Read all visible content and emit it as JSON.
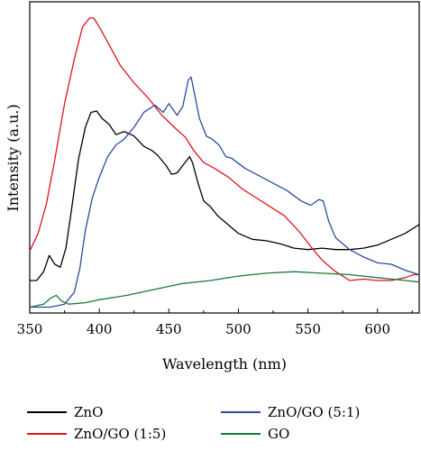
{
  "chart_data": {
    "type": "line",
    "xlabel": "Wavelength (nm)",
    "ylabel": "Intensity (a.u.)",
    "xlim": [
      350,
      630
    ],
    "ylim": [
      0,
      100
    ],
    "xticks": [
      350,
      400,
      450,
      500,
      550,
      600
    ],
    "grid": false,
    "legend_placement": "bottom",
    "series": [
      {
        "name": "ZnO",
        "color": "#000000",
        "points": [
          [
            350,
            11
          ],
          [
            355,
            11
          ],
          [
            360,
            14
          ],
          [
            364,
            19.5
          ],
          [
            368,
            16.5
          ],
          [
            372,
            15.5
          ],
          [
            376,
            22
          ],
          [
            380,
            35
          ],
          [
            385,
            52
          ],
          [
            390,
            63
          ],
          [
            394,
            68
          ],
          [
            398,
            68.5
          ],
          [
            402,
            66
          ],
          [
            407,
            64
          ],
          [
            412,
            60.5
          ],
          [
            418,
            61.5
          ],
          [
            425,
            60
          ],
          [
            432,
            56.5
          ],
          [
            438,
            55
          ],
          [
            442,
            53.5
          ],
          [
            448,
            50
          ],
          [
            452,
            47
          ],
          [
            456,
            47.5
          ],
          [
            460,
            50
          ],
          [
            465,
            53
          ],
          [
            467,
            51
          ],
          [
            471,
            44
          ],
          [
            475,
            38
          ],
          [
            480,
            36
          ],
          [
            485,
            33
          ],
          [
            490,
            31
          ],
          [
            495,
            29
          ],
          [
            500,
            27
          ],
          [
            510,
            25
          ],
          [
            520,
            24.5
          ],
          [
            530,
            23.5
          ],
          [
            540,
            22
          ],
          [
            550,
            21.5
          ],
          [
            560,
            22
          ],
          [
            570,
            21.5
          ],
          [
            580,
            21.5
          ],
          [
            590,
            22
          ],
          [
            600,
            23
          ],
          [
            610,
            25
          ],
          [
            620,
            27
          ],
          [
            630,
            30
          ]
        ]
      },
      {
        "name": "ZnO/GO (1:5)",
        "color": "#e0141e",
        "points": [
          [
            350,
            21
          ],
          [
            356,
            27
          ],
          [
            362,
            37
          ],
          [
            368,
            52
          ],
          [
            375,
            71
          ],
          [
            382,
            86
          ],
          [
            388,
            97
          ],
          [
            393,
            100
          ],
          [
            396,
            100
          ],
          [
            400,
            97
          ],
          [
            407,
            91
          ],
          [
            415,
            84
          ],
          [
            425,
            78
          ],
          [
            435,
            73
          ],
          [
            445,
            67
          ],
          [
            455,
            62.5
          ],
          [
            462,
            59.5
          ],
          [
            468,
            55
          ],
          [
            475,
            51
          ],
          [
            483,
            49
          ],
          [
            493,
            46
          ],
          [
            503,
            42
          ],
          [
            513,
            39
          ],
          [
            523,
            36
          ],
          [
            533,
            33
          ],
          [
            543,
            28
          ],
          [
            553,
            22
          ],
          [
            560,
            18
          ],
          [
            570,
            14
          ],
          [
            580,
            11
          ],
          [
            590,
            11.5
          ],
          [
            600,
            11
          ],
          [
            610,
            11
          ],
          [
            620,
            12
          ],
          [
            626,
            13
          ],
          [
            630,
            13
          ]
        ]
      },
      {
        "name": "ZnO/GO (5:1)",
        "color": "#2a4ba0",
        "points": [
          [
            350,
            2
          ],
          [
            365,
            2
          ],
          [
            375,
            3
          ],
          [
            382,
            7
          ],
          [
            386,
            15
          ],
          [
            390,
            28
          ],
          [
            395,
            39
          ],
          [
            400,
            46
          ],
          [
            406,
            53
          ],
          [
            412,
            57
          ],
          [
            418,
            59
          ],
          [
            425,
            63
          ],
          [
            432,
            68
          ],
          [
            440,
            70.5
          ],
          [
            446,
            68
          ],
          [
            450,
            71
          ],
          [
            456,
            67
          ],
          [
            460,
            70
          ],
          [
            464,
            79
          ],
          [
            466,
            80
          ],
          [
            469,
            73
          ],
          [
            472,
            66
          ],
          [
            477,
            60
          ],
          [
            481,
            59
          ],
          [
            486,
            57
          ],
          [
            491,
            53
          ],
          [
            495,
            52.5
          ],
          [
            505,
            49
          ],
          [
            515,
            46.5
          ],
          [
            525,
            44
          ],
          [
            535,
            41.5
          ],
          [
            545,
            38
          ],
          [
            552,
            36.5
          ],
          [
            558,
            38.5
          ],
          [
            561,
            38
          ],
          [
            565,
            31
          ],
          [
            570,
            25.5
          ],
          [
            580,
            21.5
          ],
          [
            590,
            19
          ],
          [
            600,
            17
          ],
          [
            610,
            16.5
          ],
          [
            620,
            14.5
          ],
          [
            630,
            13
          ]
        ]
      },
      {
        "name": "GO",
        "color": "#1a7a3a",
        "points": [
          [
            350,
            2
          ],
          [
            360,
            3
          ],
          [
            365,
            5
          ],
          [
            369,
            6
          ],
          [
            373,
            4
          ],
          [
            378,
            3
          ],
          [
            390,
            3.5
          ],
          [
            400,
            4.5
          ],
          [
            420,
            6
          ],
          [
            440,
            8
          ],
          [
            460,
            10
          ],
          [
            480,
            11
          ],
          [
            500,
            12.5
          ],
          [
            520,
            13.5
          ],
          [
            540,
            14
          ],
          [
            560,
            13.5
          ],
          [
            580,
            13
          ],
          [
            600,
            12
          ],
          [
            620,
            11
          ],
          [
            630,
            10.5
          ]
        ]
      }
    ]
  },
  "legend": {
    "items": [
      {
        "label": "ZnO",
        "color": "#000000"
      },
      {
        "label": "ZnO/GO (5:1)",
        "color": "#2a4ba0"
      },
      {
        "label": "ZnO/GO (1:5)",
        "color": "#e0141e"
      },
      {
        "label": "GO",
        "color": "#1a7a3a"
      }
    ]
  }
}
